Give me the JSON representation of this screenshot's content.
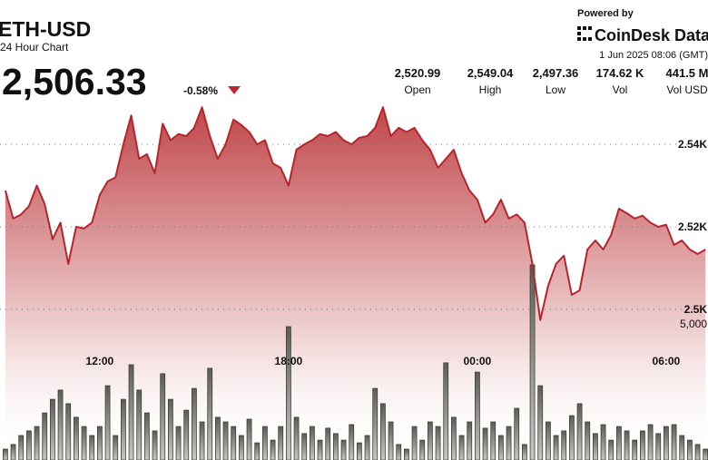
{
  "header": {
    "powered_by": "Powered by",
    "brand": "CoinDesk Data",
    "timestamp": "1 Jun 2025 08:06 (GMT)",
    "price": "2,506.33",
    "change": "-0.58%",
    "stats": [
      {
        "value": "2,520.99",
        "label": "Open"
      },
      {
        "value": "2,549.04",
        "label": "High"
      },
      {
        "value": "2,497.36",
        "label": "Low"
      },
      {
        "value": "174.62 K",
        "label": "Vol"
      },
      {
        "value": "441.5 M",
        "label": "Vol USD"
      }
    ]
  },
  "chart_data": {
    "type": "line",
    "title": "ETH-USD",
    "subtitle": "24 Hour Chart",
    "x": [
      9,
      9.25,
      9.5,
      9.75,
      10,
      10.25,
      10.5,
      10.75,
      11,
      11.25,
      11.5,
      11.75,
      12,
      12.25,
      12.5,
      12.75,
      13,
      13.25,
      13.5,
      13.75,
      14,
      14.25,
      14.5,
      14.75,
      15,
      15.25,
      15.5,
      15.75,
      16,
      16.25,
      16.5,
      16.75,
      17,
      17.25,
      17.5,
      17.75,
      18,
      18.25,
      18.5,
      18.75,
      19,
      19.25,
      19.5,
      19.75,
      20,
      20.25,
      20.5,
      20.75,
      21,
      21.25,
      21.5,
      21.75,
      22,
      22.25,
      22.5,
      22.75,
      23,
      23.25,
      23.5,
      23.75,
      24,
      24.25,
      24.5,
      24.75,
      25,
      25.25,
      25.5,
      25.75,
      26,
      26.25,
      26.5,
      26.75,
      27,
      27.25,
      27.5,
      27.75,
      28,
      28.25,
      28.5,
      28.75,
      29,
      29.25,
      29.5,
      29.75,
      30,
      30.25,
      30.5,
      30.75,
      31,
      31.25
    ],
    "series": [
      {
        "color": "#b5262a",
        "values": [
          2528.8,
          2522,
          2523,
          2525,
          2530,
          2525.5,
          2517,
          2521,
          2511,
          2520,
          2519.6,
          2521,
          2527.7,
          2531,
          2532,
          2540,
          2547,
          2536.5,
          2537.6,
          2533,
          2545,
          2541,
          2542.5,
          2542,
          2544,
          2549,
          2542,
          2536.5,
          2540,
          2546,
          2544.7,
          2543,
          2540,
          2541,
          2535.4,
          2534.3,
          2530,
          2538.7,
          2540,
          2541,
          2542.5,
          2542,
          2543,
          2541,
          2540,
          2541.6,
          2542,
          2544,
          2549,
          2542,
          2544,
          2543,
          2544,
          2541,
          2538.7,
          2534.3,
          2536.5,
          2538.7,
          2533,
          2528.8,
          2526.6,
          2521,
          2523,
          2526.6,
          2522,
          2523,
          2521,
          2511,
          2497.4,
          2505.7,
          2511,
          2513,
          2503.5,
          2504.6,
          2514.5,
          2516.7,
          2514.5,
          2518,
          2524.4,
          2523.3,
          2522,
          2522.7,
          2521,
          2520,
          2520.5,
          2515.6,
          2516.7,
          2514.5,
          2513.4,
          2514.5
        ]
      },
      {
        "type": "bar",
        "axis": "y2",
        "color": "#8b8d82",
        "values": [
          400,
          570,
          900,
          1070,
          1230,
          1730,
          2230,
          2570,
          2070,
          1570,
          1230,
          900,
          1230,
          2730,
          900,
          2230,
          3500,
          2570,
          1730,
          1070,
          3170,
          2230,
          1230,
          1830,
          2630,
          1400,
          3370,
          1570,
          1400,
          1230,
          900,
          1500,
          630,
          1230,
          730,
          1230,
          4900,
          1570,
          970,
          1230,
          730,
          1170,
          970,
          730,
          1300,
          630,
          900,
          2630,
          2070,
          1400,
          570,
          400,
          1230,
          730,
          1400,
          1230,
          3570,
          1570,
          900,
          1400,
          3230,
          1170,
          1400,
          900,
          1230,
          1900,
          570,
          7170,
          2730,
          1400,
          900,
          1070,
          1630,
          2070,
          1400,
          970,
          1300,
          730,
          1230,
          1070,
          730,
          1070,
          1300,
          970,
          1230,
          1300,
          900,
          730,
          570,
          400
        ]
      }
    ],
    "xlim": [
      8.83,
      31.33
    ],
    "xticks": [
      {
        "value": 12,
        "label": "12:00"
      },
      {
        "value": 18,
        "label": "18:00"
      },
      {
        "value": 24,
        "label": "00:00"
      },
      {
        "value": 30,
        "label": "06:00"
      }
    ],
    "ylim": [
      2487,
      2553
    ],
    "yticks": [
      {
        "value": 2500,
        "label": "2.5K"
      },
      {
        "value": 2520,
        "label": "2.52K"
      },
      {
        "value": 2540,
        "label": "2.54K"
      }
    ],
    "y2lim": [
      0,
      8000
    ],
    "y2ticks": [
      {
        "value": 5000,
        "label": "5,000"
      }
    ],
    "grid": true
  }
}
